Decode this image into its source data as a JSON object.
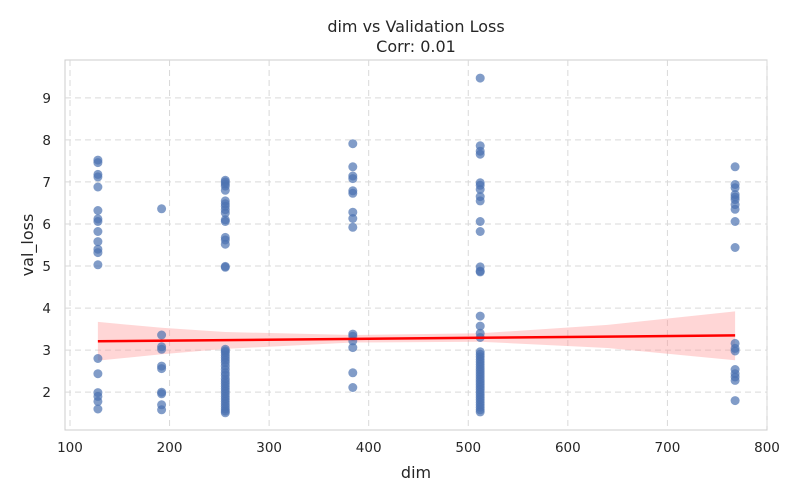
{
  "chart_data": {
    "type": "scatter",
    "title": "dim vs Validation Loss",
    "subtitle": "Corr: 0.01",
    "xlabel": "dim",
    "ylabel": "val_loss",
    "xlim": [
      95,
      800
    ],
    "ylim": [
      1.1,
      9.9
    ],
    "xticks": [
      100,
      200,
      300,
      400,
      500,
      600,
      700,
      800
    ],
    "yticks": [
      2,
      3,
      4,
      5,
      6,
      7,
      8,
      9
    ],
    "grid": true,
    "point_color": "#4c72b0",
    "line_color": "#ff0000",
    "band_color": "#ff9999",
    "regression": {
      "x": [
        128,
        768
      ],
      "y": [
        3.21,
        3.35
      ]
    },
    "confidence_band": {
      "x": [
        128,
        192,
        256,
        384,
        512,
        640,
        768
      ],
      "upper": [
        3.67,
        3.53,
        3.43,
        3.36,
        3.4,
        3.6,
        3.92
      ],
      "lower": [
        2.75,
        2.9,
        3.03,
        3.18,
        3.2,
        3.05,
        2.76
      ]
    },
    "points": [
      [
        128,
        7.52
      ],
      [
        128,
        7.46
      ],
      [
        128,
        7.18
      ],
      [
        128,
        7.12
      ],
      [
        128,
        6.88
      ],
      [
        128,
        6.32
      ],
      [
        128,
        6.12
      ],
      [
        128,
        6.06
      ],
      [
        128,
        5.82
      ],
      [
        128,
        5.58
      ],
      [
        128,
        5.4
      ],
      [
        128,
        5.32
      ],
      [
        128,
        5.03
      ],
      [
        128,
        2.8
      ],
      [
        128,
        2.44
      ],
      [
        128,
        1.99
      ],
      [
        128,
        1.9
      ],
      [
        128,
        1.78
      ],
      [
        128,
        1.6
      ],
      [
        192,
        6.36
      ],
      [
        192,
        3.36
      ],
      [
        192,
        3.08
      ],
      [
        192,
        3.02
      ],
      [
        192,
        2.62
      ],
      [
        192,
        2.56
      ],
      [
        192,
        2.0
      ],
      [
        192,
        1.96
      ],
      [
        192,
        1.7
      ],
      [
        192,
        1.58
      ],
      [
        256,
        7.04
      ],
      [
        256,
        7.0
      ],
      [
        256,
        6.95
      ],
      [
        256,
        6.9
      ],
      [
        256,
        6.8
      ],
      [
        256,
        6.55
      ],
      [
        256,
        6.48
      ],
      [
        256,
        6.42
      ],
      [
        256,
        6.34
      ],
      [
        256,
        6.26
      ],
      [
        256,
        6.1
      ],
      [
        256,
        6.06
      ],
      [
        256,
        5.68
      ],
      [
        256,
        5.62
      ],
      [
        256,
        5.52
      ],
      [
        256,
        4.99
      ],
      [
        256,
        4.97
      ],
      [
        256,
        3.02
      ],
      [
        256,
        2.98
      ],
      [
        256,
        2.94
      ],
      [
        256,
        2.88
      ],
      [
        256,
        2.82
      ],
      [
        256,
        2.76
      ],
      [
        256,
        2.7
      ],
      [
        256,
        2.62
      ],
      [
        256,
        2.54
      ],
      [
        256,
        2.46
      ],
      [
        256,
        2.4
      ],
      [
        256,
        2.32
      ],
      [
        256,
        2.26
      ],
      [
        256,
        2.2
      ],
      [
        256,
        2.14
      ],
      [
        256,
        2.08
      ],
      [
        256,
        2.02
      ],
      [
        256,
        1.96
      ],
      [
        256,
        1.9
      ],
      [
        256,
        1.84
      ],
      [
        256,
        1.78
      ],
      [
        256,
        1.72
      ],
      [
        256,
        1.66
      ],
      [
        256,
        1.6
      ],
      [
        256,
        1.55
      ],
      [
        256,
        1.51
      ],
      [
        384,
        7.91
      ],
      [
        384,
        7.36
      ],
      [
        384,
        7.14
      ],
      [
        384,
        7.08
      ],
      [
        384,
        6.79
      ],
      [
        384,
        6.73
      ],
      [
        384,
        6.28
      ],
      [
        384,
        6.13
      ],
      [
        384,
        5.92
      ],
      [
        384,
        3.38
      ],
      [
        384,
        3.33
      ],
      [
        384,
        3.22
      ],
      [
        384,
        3.06
      ],
      [
        384,
        2.46
      ],
      [
        384,
        2.11
      ],
      [
        512,
        9.47
      ],
      [
        512,
        7.86
      ],
      [
        512,
        7.73
      ],
      [
        512,
        7.66
      ],
      [
        512,
        6.98
      ],
      [
        512,
        6.92
      ],
      [
        512,
        6.82
      ],
      [
        512,
        6.65
      ],
      [
        512,
        6.55
      ],
      [
        512,
        6.06
      ],
      [
        512,
        5.82
      ],
      [
        512,
        4.98
      ],
      [
        512,
        4.88
      ],
      [
        512,
        4.86
      ],
      [
        512,
        3.81
      ],
      [
        512,
        3.57
      ],
      [
        512,
        3.4
      ],
      [
        512,
        3.3
      ],
      [
        512,
        2.96
      ],
      [
        512,
        2.9
      ],
      [
        512,
        2.84
      ],
      [
        512,
        2.78
      ],
      [
        512,
        2.72
      ],
      [
        512,
        2.66
      ],
      [
        512,
        2.6
      ],
      [
        512,
        2.54
      ],
      [
        512,
        2.48
      ],
      [
        512,
        2.42
      ],
      [
        512,
        2.36
      ],
      [
        512,
        2.3
      ],
      [
        512,
        2.24
      ],
      [
        512,
        2.18
      ],
      [
        512,
        2.12
      ],
      [
        512,
        2.06
      ],
      [
        512,
        2.0
      ],
      [
        512,
        1.94
      ],
      [
        512,
        1.88
      ],
      [
        512,
        1.82
      ],
      [
        512,
        1.76
      ],
      [
        512,
        1.7
      ],
      [
        512,
        1.64
      ],
      [
        512,
        1.58
      ],
      [
        512,
        1.53
      ],
      [
        768,
        7.36
      ],
      [
        768,
        6.94
      ],
      [
        768,
        6.86
      ],
      [
        768,
        6.7
      ],
      [
        768,
        6.64
      ],
      [
        768,
        6.58
      ],
      [
        768,
        6.46
      ],
      [
        768,
        6.35
      ],
      [
        768,
        6.06
      ],
      [
        768,
        5.44
      ],
      [
        768,
        3.16
      ],
      [
        768,
        3.04
      ],
      [
        768,
        2.98
      ],
      [
        768,
        2.54
      ],
      [
        768,
        2.44
      ],
      [
        768,
        2.36
      ],
      [
        768,
        2.28
      ],
      [
        768,
        1.8
      ]
    ]
  }
}
